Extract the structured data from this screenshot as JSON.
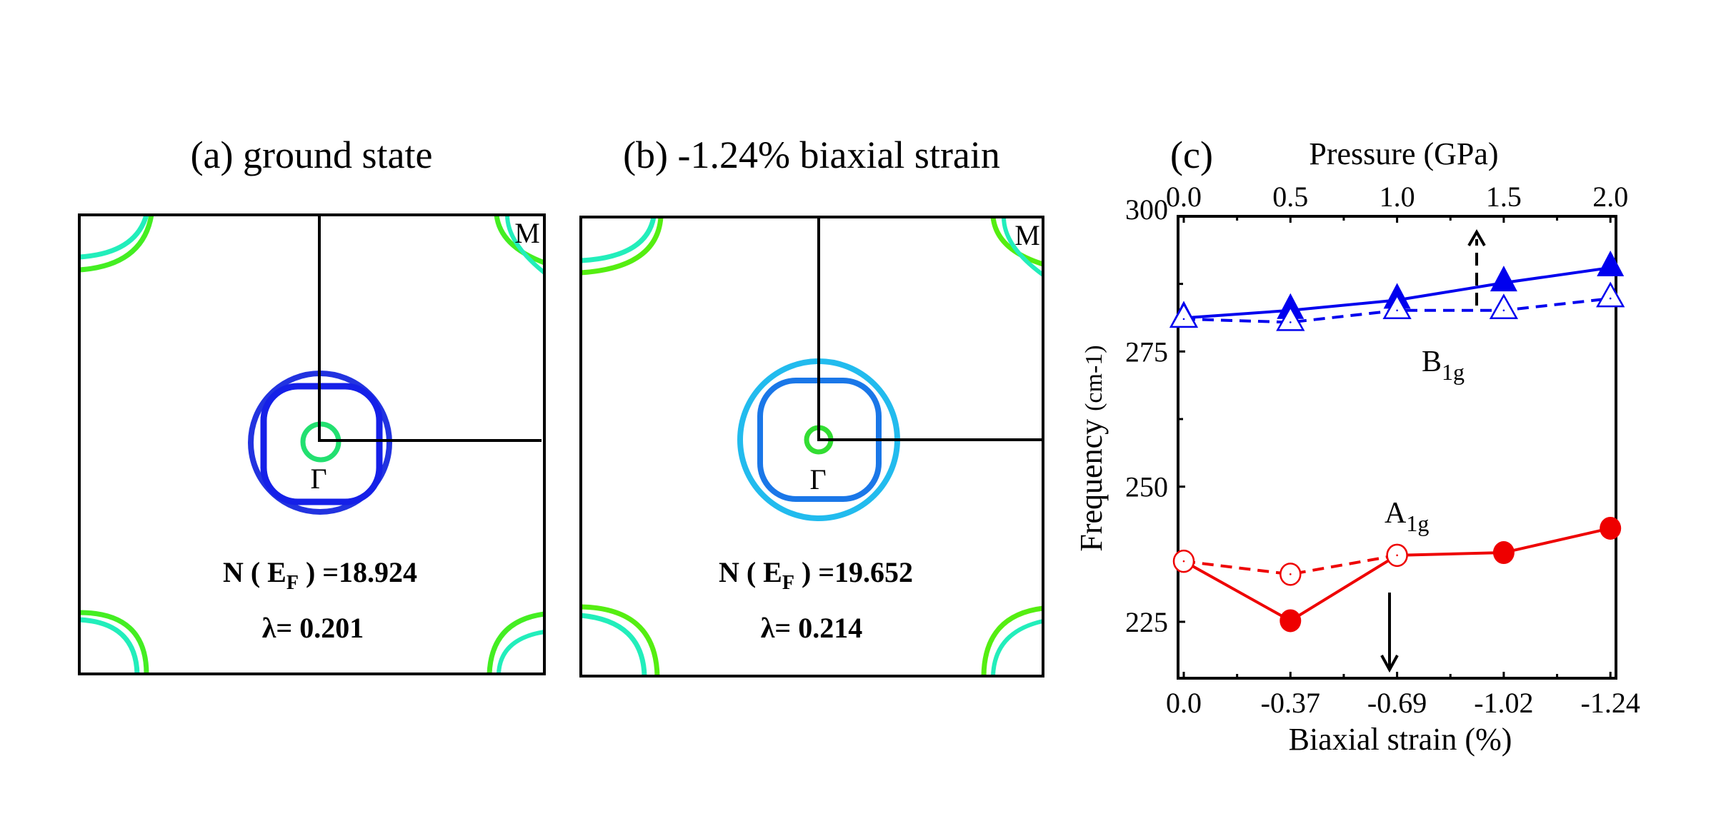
{
  "panels": [
    {
      "id": "a",
      "title": "(a) ground state",
      "high_symmetry_points": {
        "corner": "M",
        "center": "Γ"
      },
      "dos_label": {
        "prefix": "N ( E",
        "subscript": "F",
        "suffix": " ) =18.924"
      },
      "lambda_label": "λ= 0.201",
      "colors": {
        "outer_ring": "#2233e0",
        "inner_ring": "#1520e8",
        "center_pocket": "#22e070",
        "corner_outer": "#44ee22",
        "corner_inner": "#22eebb"
      }
    },
    {
      "id": "b",
      "title": "(b) -1.24% biaxial strain",
      "high_symmetry_points": {
        "corner": "M",
        "center": "Γ"
      },
      "dos_label": {
        "prefix": "N ( E",
        "subscript": "F",
        "suffix": " ) =19.652"
      },
      "lambda_label": "λ= 0.214",
      "colors": {
        "outer_ring": "#22bbee",
        "inner_ring": "#1a77e8",
        "center_pocket": "#33dd33",
        "corner_outer": "#55ee11",
        "corner_inner": "#22eebb"
      }
    }
  ],
  "chart_data": {
    "type": "line",
    "panel_label": "(c)",
    "title": "",
    "xlabel": "Biaxial strain (%)",
    "x2label": "Pressure (GPa)",
    "ylabel_main": "Frequency ",
    "ylabel_unit": "(cm-1)",
    "categories": [
      "0.0",
      "-0.37",
      "-0.69",
      "-1.02",
      "-1.24"
    ],
    "x": [
      0.0,
      -0.37,
      -0.69,
      -1.02,
      -1.24
    ],
    "x2_ticks": [
      "0.0",
      "0.5",
      "1.0",
      "1.5",
      "2.0"
    ],
    "x2": [
      0.0,
      0.5,
      1.0,
      1.5,
      2.0
    ],
    "yticks": [
      225,
      250,
      275,
      300
    ],
    "ylim": [
      214.6,
      300
    ],
    "grid": false,
    "annotations": [
      {
        "text": "B",
        "sub": "1g",
        "near": "B1g series"
      },
      {
        "text": "A",
        "sub": "1g",
        "near": "A1g series"
      },
      {
        "arrow": "dashed-up",
        "meaning": "pressure axis (top)"
      },
      {
        "arrow": "solid-down",
        "meaning": "strain axis (bottom)"
      }
    ],
    "series": [
      {
        "name": "B1g vs strain",
        "axis": "bottom",
        "style": "solid",
        "marker": "filled-triangle",
        "color": "#0000ee",
        "values": [
          281.2,
          282.6,
          284.5,
          287.7,
          290.5
        ]
      },
      {
        "name": "B1g vs pressure",
        "axis": "top",
        "style": "dashed",
        "marker": "open-triangle",
        "color": "#0000ee",
        "values": [
          281.0,
          280.4,
          282.6,
          282.6,
          284.8
        ]
      },
      {
        "name": "A1g vs strain",
        "axis": "bottom",
        "style": "solid",
        "marker": "filled-circle",
        "color": "#ee0000",
        "values": [
          236.2,
          225.2,
          237.3,
          237.8,
          242.3
        ]
      },
      {
        "name": "A1g vs pressure",
        "axis": "top",
        "style": "dashed",
        "marker": "open-circle",
        "color": "#ee0000",
        "values": [
          236.2,
          233.8,
          237.3,
          null,
          null
        ]
      }
    ]
  }
}
